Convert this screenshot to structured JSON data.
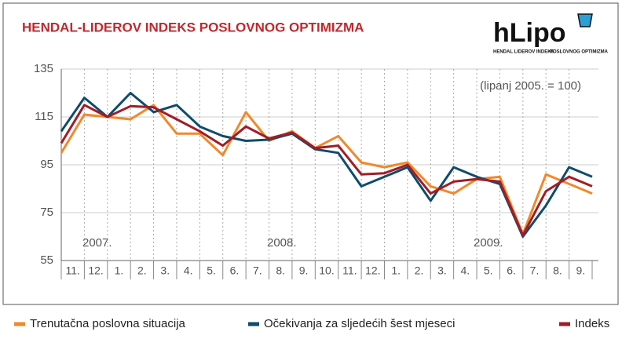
{
  "chart_data": {
    "type": "line",
    "title": "HENDAL-LIDEROV INDEKS POSLOVNOG OPTIMIZMA",
    "note": "(lipanj 2005. = 100)",
    "year_labels": [
      "2007.",
      "2008.",
      "2009."
    ],
    "categories": [
      null,
      "11.",
      "12.",
      "1.",
      "2.",
      "3.",
      "4.",
      "5.",
      "6.",
      "7.",
      "8.",
      "9.",
      "10.",
      "11.",
      "12.",
      "1.",
      "2.",
      "3.",
      "4.",
      "5.",
      "6.",
      "7.",
      "8.",
      "9."
    ],
    "series": [
      {
        "name": "Trenutačna poslovna situacija",
        "color": "#f0892a",
        "values": [
          100,
          116,
          115,
          114,
          120,
          108,
          108,
          99,
          117,
          105,
          109,
          102,
          107,
          96,
          94,
          96,
          86,
          83,
          89,
          90,
          66,
          91,
          87,
          83
        ]
      },
      {
        "name": "Očekivanja za sljedećih šest mjeseci",
        "color": "#0f4c6b",
        "values": [
          109,
          123,
          115,
          125,
          117,
          120,
          111,
          107,
          105,
          105.5,
          108,
          101.5,
          100,
          86,
          90,
          94,
          80,
          94,
          90,
          87,
          65,
          78,
          94,
          90
        ]
      },
      {
        "name": "Indeks",
        "color": "#a11d26",
        "values": [
          104,
          120,
          115,
          119.5,
          119,
          114,
          109,
          103,
          111,
          106,
          108.5,
          102,
          103,
          91,
          91.5,
          95,
          83,
          88,
          89,
          88,
          65.5,
          84,
          90,
          86
        ]
      }
    ],
    "ylim": [
      55,
      135
    ],
    "yticks": [
      55,
      75,
      95,
      115,
      135
    ],
    "grid": true
  },
  "logo": {
    "name": "hLipo",
    "line1": "HENDAL LIDEROV INDEKS",
    "line2": "POSLOVNOG OPTIMIZMA"
  }
}
